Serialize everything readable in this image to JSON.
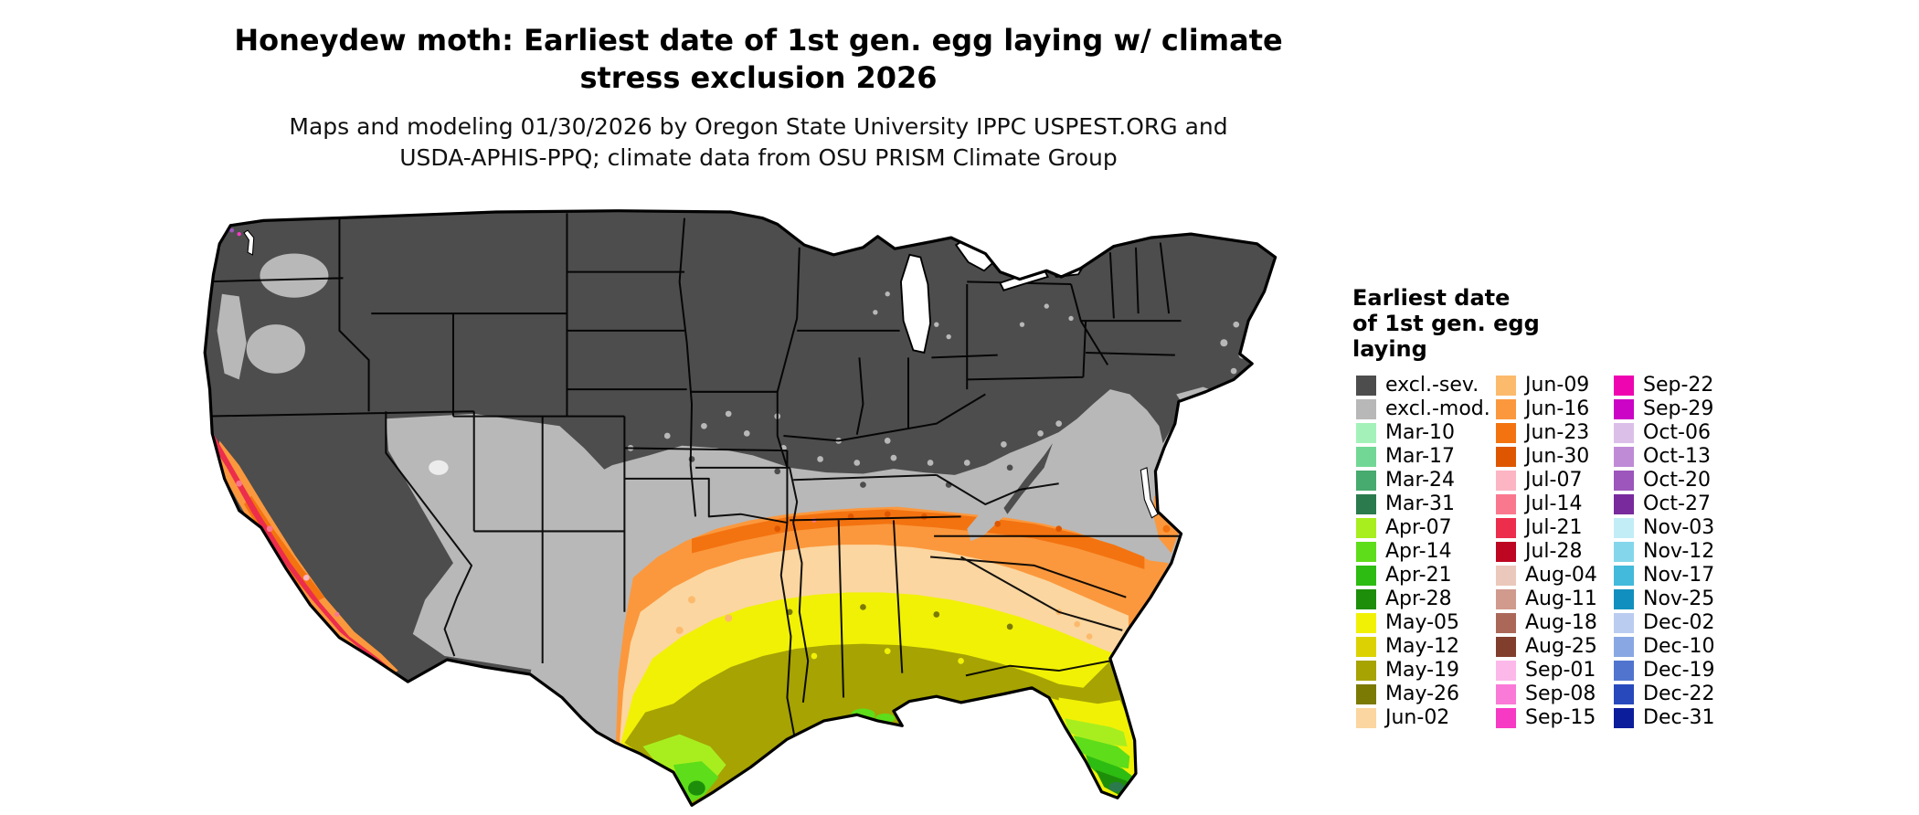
{
  "figure": {
    "title_line1": "Honeydew moth: Earliest date of 1st gen. egg laying w/ climate",
    "title_line2": "stress exclusion 2026",
    "subtitle_line1": "Maps and modeling 01/30/2026 by Oregon State University IPPC USPEST.ORG and",
    "subtitle_line2": "USDA-APHIS-PPQ; climate data from OSU PRISM Climate Group"
  },
  "legend": {
    "title_lines": [
      "Earliest date",
      "of 1st gen. egg",
      "laying"
    ],
    "columns": [
      [
        {
          "label": "excl.-sev.",
          "key": "excl_sev"
        },
        {
          "label": "excl.-mod.",
          "key": "excl_mod"
        },
        {
          "label": "Mar-10",
          "key": "mar10"
        },
        {
          "label": "Mar-17",
          "key": "mar17"
        },
        {
          "label": "Mar-24",
          "key": "mar24"
        },
        {
          "label": "Mar-31",
          "key": "mar31"
        },
        {
          "label": "Apr-07",
          "key": "apr07"
        },
        {
          "label": "Apr-14",
          "key": "apr14"
        },
        {
          "label": "Apr-21",
          "key": "apr21"
        },
        {
          "label": "Apr-28",
          "key": "apr28"
        },
        {
          "label": "May-05",
          "key": "may05"
        },
        {
          "label": "May-12",
          "key": "may12"
        },
        {
          "label": "May-19",
          "key": "may19"
        },
        {
          "label": "May-26",
          "key": "may26"
        },
        {
          "label": "Jun-02",
          "key": "jun02"
        }
      ],
      [
        {
          "label": "Jun-09",
          "key": "jun09"
        },
        {
          "label": "Jun-16",
          "key": "jun16"
        },
        {
          "label": "Jun-23",
          "key": "jun23"
        },
        {
          "label": "Jun-30",
          "key": "jun30"
        },
        {
          "label": "Jul-07",
          "key": "jul07"
        },
        {
          "label": "Jul-14",
          "key": "jul14"
        },
        {
          "label": "Jul-21",
          "key": "jul21"
        },
        {
          "label": "Jul-28",
          "key": "jul28"
        },
        {
          "label": "Aug-04",
          "key": "aug04"
        },
        {
          "label": "Aug-11",
          "key": "aug11"
        },
        {
          "label": "Aug-18",
          "key": "aug18"
        },
        {
          "label": "Aug-25",
          "key": "aug25"
        },
        {
          "label": "Sep-01",
          "key": "sep01"
        },
        {
          "label": "Sep-08",
          "key": "sep08"
        },
        {
          "label": "Sep-15",
          "key": "sep15"
        }
      ],
      [
        {
          "label": "Sep-22",
          "key": "sep22"
        },
        {
          "label": "Sep-29",
          "key": "sep29"
        },
        {
          "label": "Oct-06",
          "key": "oct06"
        },
        {
          "label": "Oct-13",
          "key": "oct13"
        },
        {
          "label": "Oct-20",
          "key": "oct20"
        },
        {
          "label": "Oct-27",
          "key": "oct27"
        },
        {
          "label": "Nov-03",
          "key": "nov03"
        },
        {
          "label": "Nov-12",
          "key": "nov12"
        },
        {
          "label": "Nov-17",
          "key": "nov17"
        },
        {
          "label": "Nov-25",
          "key": "nov25"
        },
        {
          "label": "Dec-02",
          "key": "dec02"
        },
        {
          "label": "Dec-10",
          "key": "dec10"
        },
        {
          "label": "Dec-19",
          "key": "dec19"
        },
        {
          "label": "Dec-22",
          "key": "dec22"
        },
        {
          "label": "Dec-31",
          "key": "dec31"
        }
      ]
    ]
  },
  "palette": {
    "excl_sev": "#4d4d4d",
    "excl_mod": "#b8b8b8",
    "mar10": "#a4f2b9",
    "mar17": "#72d795",
    "mar24": "#47aa6e",
    "mar31": "#2b7a4d",
    "apr07": "#a8ee1f",
    "apr14": "#5edd1a",
    "apr21": "#2dbc11",
    "apr28": "#1d8e0a",
    "may05": "#f1f106",
    "may12": "#dcd203",
    "may19": "#a6a303",
    "may26": "#7b7a04",
    "jun02": "#fbd6a0",
    "jun09": "#fcba6c",
    "jun16": "#fb983d",
    "jun23": "#f37310",
    "jun30": "#de5700",
    "jul07": "#fcb5c3",
    "jul14": "#fa788e",
    "jul21": "#ec2d4c",
    "jul28": "#bd0622",
    "aug04": "#ebc8bc",
    "aug11": "#d09a8c",
    "aug18": "#ab6858",
    "aug25": "#813e2d",
    "sep01": "#fcb8e9",
    "sep08": "#fa7ad7",
    "sep15": "#f63ac4",
    "sep22": "#ee05b0",
    "sep29": "#cb04c6",
    "oct06": "#dbbfe9",
    "oct13": "#bf8bd7",
    "oct20": "#9c56bc",
    "oct27": "#792a9c",
    "nov03": "#c2edf6",
    "nov12": "#84d7eb",
    "nov17": "#43badb",
    "nov25": "#1190bf",
    "dec02": "#bbccf1",
    "dec10": "#89a7e3",
    "dec19": "#5174cf",
    "dec22": "#2849bc",
    "dec31": "#0c1d9c"
  }
}
